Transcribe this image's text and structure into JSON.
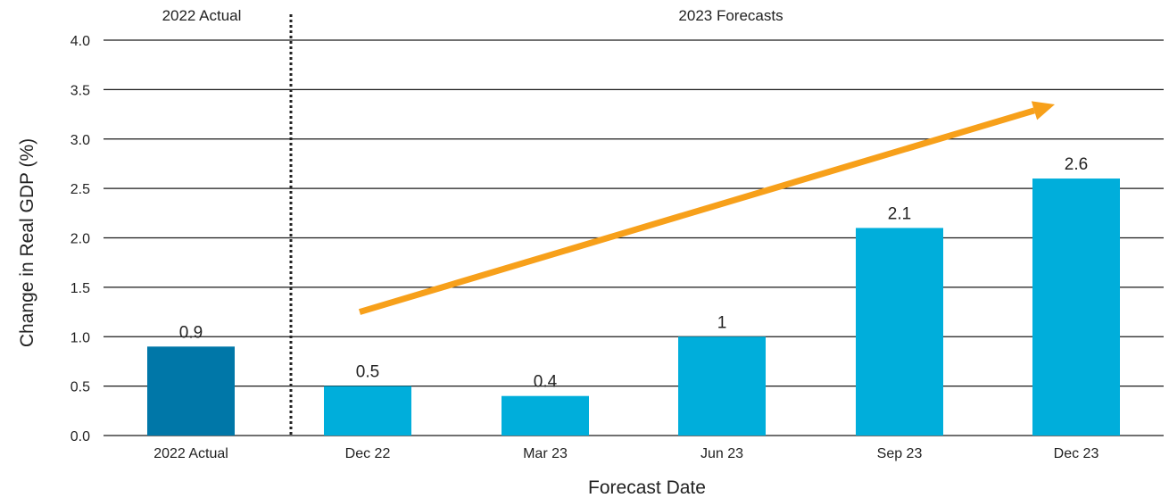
{
  "colors": {
    "actual_bar": "#0077A8",
    "forecast_bar": "#00AEDB",
    "trend_arrow": "#F7A01A",
    "gridline": "#1a1a1a",
    "divider": "#222222"
  },
  "sections": {
    "left": "2022 Actual",
    "right": "2023 Forecasts"
  },
  "chart_data": {
    "type": "bar",
    "categories": [
      "2022 Actual",
      "Dec 22",
      "Mar 23",
      "Jun 23",
      "Sep 23",
      "Dec 23"
    ],
    "values": [
      0.9,
      0.5,
      0.4,
      1.0,
      2.1,
      2.6
    ],
    "data_labels": [
      "0.9",
      "0.5",
      "0.4",
      "1",
      "2.1",
      "2.6"
    ],
    "bar_kind": [
      "actual",
      "forecast",
      "forecast",
      "forecast",
      "forecast",
      "forecast"
    ],
    "xlabel": "Forecast Date",
    "ylabel": "Change in Real GDP (%)",
    "ylim": [
      0,
      4.0
    ],
    "yticks": [
      "0.0",
      "0.5",
      "1.0",
      "1.5",
      "2.0",
      "2.5",
      "3.0",
      "3.5",
      "4.0"
    ],
    "grid": true,
    "annotations": [
      {
        "type": "arrow",
        "description": "upward trend arrow",
        "from": {
          "x": "Dec 22",
          "y": 1.25
        },
        "to": {
          "x": "Dec 23",
          "y": 3.35
        }
      },
      {
        "type": "divider",
        "style": "dotted",
        "between": [
          "2022 Actual",
          "Dec 22"
        ]
      }
    ]
  }
}
